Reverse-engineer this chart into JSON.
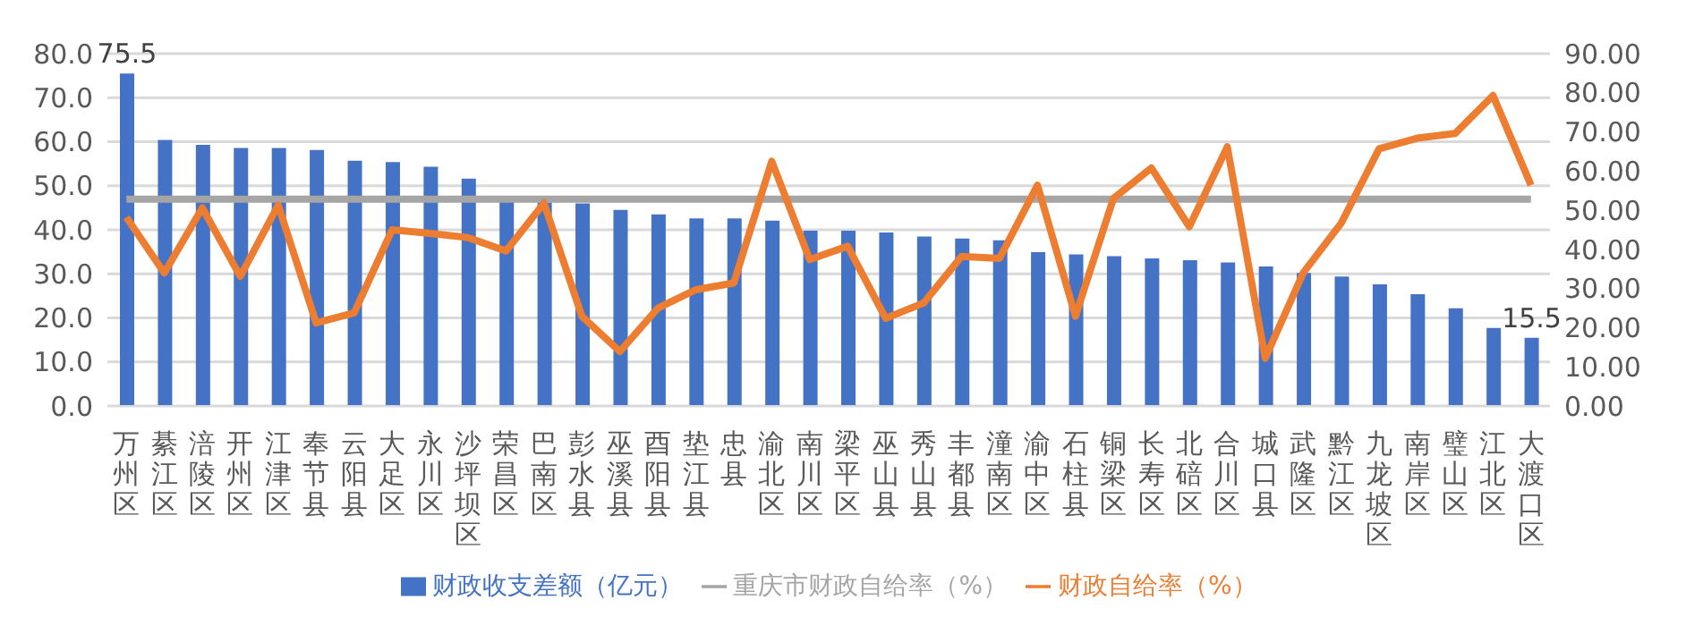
{
  "chart_data": {
    "type": "bar",
    "categories": [
      "万州区",
      "綦江区",
      "涪陵区",
      "开州区",
      "江津区",
      "奉节县",
      "云阳县",
      "大足区",
      "永川区",
      "沙坪坝区",
      "荣昌区",
      "巴南区",
      "彭水县",
      "巫溪县",
      "酉阳县",
      "垫江县",
      "忠县",
      "渝北区",
      "南川区",
      "梁平区",
      "巫山县",
      "秀山县",
      "丰都县",
      "潼南区",
      "渝中区",
      "石柱县",
      "铜梁区",
      "长寿区",
      "北碚区",
      "合川区",
      "城口县",
      "武隆区",
      "黔江区",
      "九龙坡区",
      "南岸区",
      "璧山区",
      "江北区",
      "大渡口区"
    ],
    "series": [
      {
        "name": "财政收支差额（亿元）",
        "color": "#4472c4",
        "values": [
          75.5,
          60.4,
          59.3,
          58.6,
          58.6,
          58.1,
          55.7,
          55.4,
          54.3,
          51.6,
          46.5,
          46.2,
          46.0,
          44.5,
          43.5,
          42.6,
          42.6,
          42.1,
          39.8,
          39.8,
          39.4,
          38.5,
          38.0,
          37.6,
          34.9,
          34.4,
          34.0,
          33.5,
          33.1,
          32.6,
          31.7,
          30.2,
          29.4,
          27.6,
          25.4,
          22.2,
          17.7,
          15.5
        ],
        "value_labels": [
          "75.5",
          null,
          null,
          null,
          null,
          null,
          null,
          null,
          null,
          null,
          null,
          null,
          null,
          null,
          null,
          null,
          null,
          null,
          null,
          null,
          null,
          null,
          null,
          null,
          null,
          null,
          null,
          null,
          null,
          null,
          null,
          null,
          null,
          null,
          null,
          null,
          null,
          "15.5"
        ]
      },
      {
        "name": "重庆市财政自给率（%）",
        "type": "line",
        "axis": "y2",
        "color": "#a5a5a5",
        "values": [
          52.8,
          52.8,
          52.8,
          52.8,
          52.8,
          52.8,
          52.8,
          52.8,
          52.8,
          52.8,
          52.8,
          52.8,
          52.8,
          52.8,
          52.8,
          52.8,
          52.8,
          52.8,
          52.8,
          52.8,
          52.8,
          52.8,
          52.8,
          52.8,
          52.8,
          52.8,
          52.8,
          52.8,
          52.8,
          52.8,
          52.8,
          52.8,
          52.8,
          52.8,
          52.8,
          52.8,
          52.8,
          52.8
        ]
      },
      {
        "name": "财政自给率（%）",
        "type": "line",
        "axis": "y2",
        "color": "#ed7d31",
        "values": [
          48.2,
          34.0,
          50.6,
          33.1,
          51.3,
          21.2,
          23.8,
          45.0,
          44.1,
          43.0,
          39.6,
          51.8,
          22.9,
          13.9,
          25.0,
          29.7,
          31.4,
          62.5,
          37.4,
          40.8,
          22.4,
          26.3,
          38.2,
          37.7,
          56.4,
          22.9,
          53.0,
          60.8,
          45.8,
          66.2,
          12.2,
          34.0,
          46.7,
          65.7,
          68.4,
          69.6,
          79.3,
          56.4
        ]
      }
    ],
    "ylim": [
      0,
      80
    ],
    "yticks": [
      {
        "value": 0,
        "label": "0.0"
      },
      {
        "value": 10,
        "label": "10.0"
      },
      {
        "value": 20,
        "label": "20.0"
      },
      {
        "value": 30,
        "label": "30.0"
      },
      {
        "value": 40,
        "label": "40.0"
      },
      {
        "value": 50,
        "label": "50.0"
      },
      {
        "value": 60,
        "label": "60.0"
      },
      {
        "value": 70,
        "label": "70.0"
      },
      {
        "value": 80,
        "label": "80.0"
      }
    ],
    "y2lim": [
      0,
      90
    ],
    "y2ticks": [
      {
        "value": 0,
        "label": "0.00"
      },
      {
        "value": 10,
        "label": "10.00"
      },
      {
        "value": 20,
        "label": "20.00"
      },
      {
        "value": 30,
        "label": "30.00"
      },
      {
        "value": 40,
        "label": "40.00"
      },
      {
        "value": 50,
        "label": "50.00"
      },
      {
        "value": 60,
        "label": "60.00"
      },
      {
        "value": 70,
        "label": "70.00"
      },
      {
        "value": 80,
        "label": "80.00"
      },
      {
        "value": 90,
        "label": "90.00"
      }
    ],
    "grid": "y",
    "legend": "bottom",
    "marker": "none",
    "line_style": "solid"
  }
}
